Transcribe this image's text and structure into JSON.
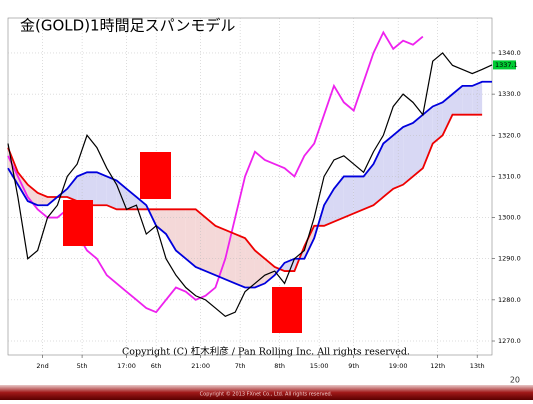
{
  "chart_data": {
    "type": "line",
    "title": "金(GOLD)1時間足スパンモデル",
    "copyright": "Copyright (C) 杠木利彦 / Pan Rolling Inc. All rights reserved.",
    "footer": "Copyright © 2013 FXnet Co., Ltd. All rights reserved.",
    "page_number": "20",
    "x": [
      0,
      1,
      2,
      3,
      4,
      5,
      6,
      7,
      8,
      9,
      10,
      11,
      12,
      13,
      14,
      15,
      16,
      17,
      18,
      19,
      20,
      21,
      22,
      23,
      24,
      25,
      26,
      27,
      28,
      29,
      30,
      31,
      32,
      33,
      34,
      35,
      36,
      37,
      38,
      39,
      40,
      41,
      42,
      43,
      44,
      45,
      46,
      47,
      48,
      49
    ],
    "xlim": [
      0,
      49
    ],
    "xticks": [
      {
        "value": 3.5,
        "label": "2nd"
      },
      {
        "value": 7.5,
        "label": "5th"
      },
      {
        "value": 12,
        "label": "17:00"
      },
      {
        "value": 15,
        "label": "6th"
      },
      {
        "value": 19.5,
        "label": "21:00"
      },
      {
        "value": 23.5,
        "label": "7th"
      },
      {
        "value": 27.5,
        "label": "8th"
      },
      {
        "value": 31.5,
        "label": "15:00"
      },
      {
        "value": 35,
        "label": "9th"
      },
      {
        "value": 39.5,
        "label": "19:00"
      },
      {
        "value": 43.5,
        "label": "12th"
      },
      {
        "value": 47.5,
        "label": "13th"
      }
    ],
    "ylim": [
      1266.6,
      1348.5
    ],
    "yticks": [
      {
        "value": 1270,
        "label": "1270.0"
      },
      {
        "value": 1280,
        "label": "1280.0"
      },
      {
        "value": 1290,
        "label": "1290.0"
      },
      {
        "value": 1300,
        "label": "1300.0"
      },
      {
        "value": 1310,
        "label": "1310.0"
      },
      {
        "value": 1320,
        "label": "1320.0"
      },
      {
        "value": 1330,
        "label": "1330.0"
      },
      {
        "value": 1340,
        "label": "1340.0"
      }
    ],
    "grid": true,
    "series": [
      {
        "color": "#000000",
        "values": [
          1318,
          1305,
          1290,
          1292,
          1300,
          1303,
          1310,
          1313,
          1320,
          1317,
          1312,
          1308,
          1302,
          1303,
          1296,
          1298,
          1290,
          1286,
          1283,
          1281,
          1280,
          1278,
          1276,
          1277,
          1282,
          1284,
          1286,
          1287,
          1284,
          1290,
          1292,
          1300,
          1310,
          1314,
          1315,
          1313,
          1311,
          1316,
          1320,
          1327,
          1330,
          1328,
          1325,
          1338,
          1340,
          1337,
          1336,
          1335,
          1336,
          1337.1
        ]
      },
      {
        "color": "#0000dd",
        "values": [
          1312,
          1308,
          1304,
          1303,
          1303,
          1305,
          1307,
          1310,
          1311,
          1311,
          1310,
          1309,
          1307,
          1305,
          1303,
          1298,
          1296,
          1292,
          1290,
          1288,
          1287,
          1286,
          1285,
          1284,
          1283,
          1283,
          1284,
          1286,
          1289,
          1290,
          1290,
          1295,
          1303,
          1307,
          1310,
          1310,
          1310,
          1313,
          1318,
          1320,
          1322,
          1323,
          1325,
          1327,
          1328,
          1330,
          1332,
          1332,
          1333,
          1333
        ]
      },
      {
        "color": "#ee0000",
        "values": [
          1317,
          1311,
          1308,
          1306,
          1305,
          1305,
          1305,
          1304,
          1303,
          1303,
          1303,
          1302,
          1302,
          1302,
          1302,
          1302,
          1302,
          1302,
          1302,
          1302,
          1300,
          1298,
          1297,
          1296,
          1295,
          1292,
          1290,
          1288,
          1287,
          1287,
          1293,
          1298,
          1298,
          1299,
          1300,
          1301,
          1302,
          1303,
          1305,
          1307,
          1308,
          1310,
          1312,
          1318,
          1320,
          1325,
          1325,
          1325,
          1325,
          null
        ]
      },
      {
        "color": "#ee22ee",
        "values": [
          1315,
          1310,
          1305,
          1302,
          1300,
          1300,
          1302,
          1296,
          1292,
          1290,
          1286,
          1284,
          1282,
          1280,
          1278,
          1277,
          1280,
          1283,
          1282,
          1280,
          1281,
          1283,
          1290,
          1300,
          1310,
          1316,
          1314,
          1313,
          1312,
          1310,
          1315,
          1318,
          1325,
          1332,
          1328,
          1326,
          1333,
          1340,
          1345,
          1341,
          1343,
          1342,
          1344,
          null,
          null,
          null,
          null,
          null,
          null,
          null
        ]
      }
    ]
  }
}
